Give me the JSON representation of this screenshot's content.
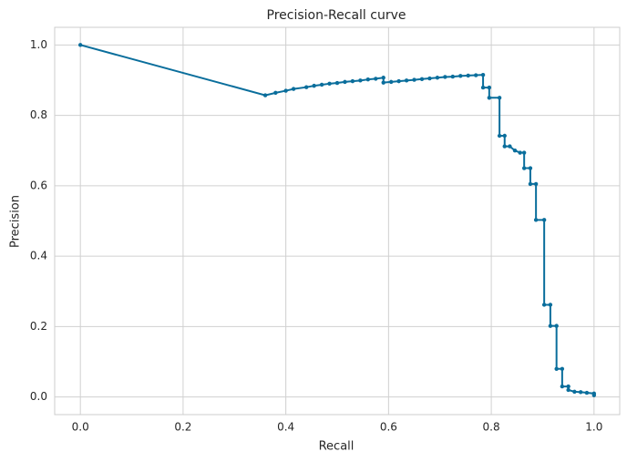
{
  "chart_data": {
    "type": "line",
    "title": "Precision-Recall curve",
    "x_label": "Recall",
    "y_label": "Precision",
    "xlim": [
      -0.05,
      1.05
    ],
    "ylim": [
      -0.05,
      1.05
    ],
    "xticks": [
      {
        "value": 0,
        "label": "0.0"
      },
      0.2,
      0.4,
      0.6,
      0.8,
      {
        "value": 1,
        "label": "1.0"
      }
    ],
    "yticks": [
      {
        "value": 0,
        "label": "0.0"
      },
      0.2,
      0.4,
      0.6,
      0.8,
      {
        "value": 1,
        "label": "1.0"
      }
    ],
    "grid": true,
    "series": [
      {
        "name": "Precision-Recall",
        "color": "#0a6e9c",
        "x": [
          0,
          0.36,
          0.38,
          0.4,
          0.415,
          0.44,
          0.455,
          0.47,
          0.485,
          0.5,
          0.515,
          0.53,
          0.545,
          0.56,
          0.575,
          0.59,
          0.59,
          0.605,
          0.62,
          0.635,
          0.65,
          0.665,
          0.68,
          0.695,
          0.71,
          0.725,
          0.74,
          0.755,
          0.77,
          0.784,
          0.784,
          0.796,
          0.796,
          0.816,
          0.816,
          0.826,
          0.826,
          0.836,
          0.846,
          0.856,
          0.864,
          0.864,
          0.876,
          0.876,
          0.887,
          0.887,
          0.903,
          0.903,
          0.915,
          0.915,
          0.927,
          0.927,
          0.938,
          0.938,
          0.95,
          0.95,
          0.962,
          0.974,
          0.986,
          1.0,
          1.0
        ],
        "values": [
          1.0,
          0.857,
          0.864,
          0.87,
          0.875,
          0.88,
          0.884,
          0.887,
          0.89,
          0.892,
          0.895,
          0.897,
          0.899,
          0.902,
          0.904,
          0.907,
          0.893,
          0.895,
          0.897,
          0.899,
          0.901,
          0.903,
          0.905,
          0.907,
          0.909,
          0.91,
          0.912,
          0.913,
          0.914,
          0.915,
          0.879,
          0.879,
          0.85,
          0.85,
          0.742,
          0.742,
          0.712,
          0.712,
          0.7,
          0.694,
          0.694,
          0.65,
          0.65,
          0.605,
          0.605,
          0.503,
          0.503,
          0.262,
          0.262,
          0.202,
          0.202,
          0.08,
          0.08,
          0.03,
          0.03,
          0.02,
          0.015,
          0.014,
          0.012,
          0.01,
          0.005
        ]
      }
    ]
  }
}
